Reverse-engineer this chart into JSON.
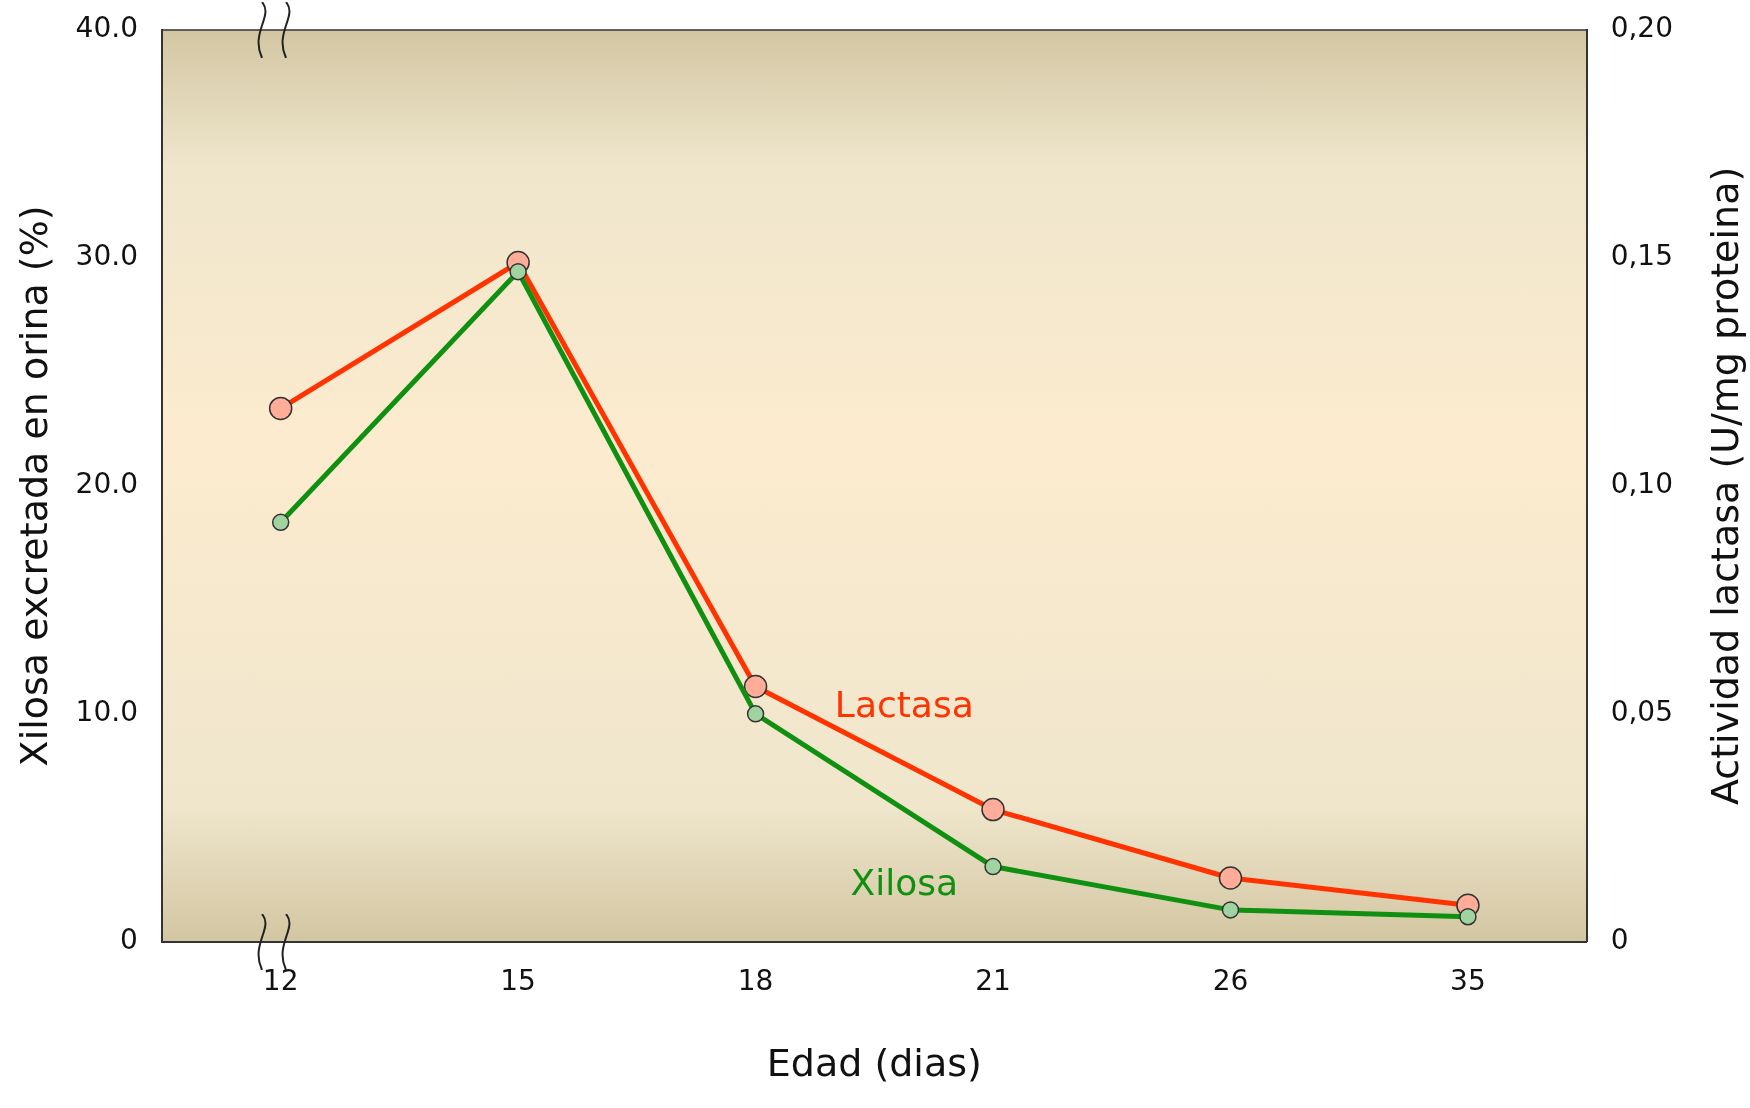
{
  "chart_data": {
    "type": "line",
    "xlabel": "Edad (dias)",
    "ylabel": "Xilosa excretada en orina (%)",
    "y2label": "Actividad lactasa (U/mg proteina)",
    "categories": [
      "12",
      "15",
      "18",
      "21",
      "26",
      "35"
    ],
    "series": [
      {
        "name": "Lactasa",
        "color": "#ff3300",
        "axis": "y2",
        "values": [
          0.117,
          0.149,
          0.056,
          0.029,
          0.014,
          0.008
        ]
      },
      {
        "name": "Xilosa",
        "color": "#109010",
        "values": [
          18.4,
          29.4,
          10.0,
          3.3,
          1.4,
          1.1
        ]
      }
    ],
    "ylim": [
      0,
      40
    ],
    "yticks": [
      0,
      {
        "value": 10,
        "label": "10.0"
      },
      {
        "value": 20,
        "label": "20.0"
      },
      {
        "value": 30,
        "label": "30.0"
      },
      {
        "value": 40,
        "label": "40.0"
      }
    ],
    "y2lim": [
      0,
      0.2
    ],
    "y2ticks": [
      0,
      {
        "value": 0.05,
        "label": "0,05"
      },
      {
        "value": 0.1,
        "label": "0,10"
      },
      {
        "value": 0.15,
        "label": "0,15"
      },
      {
        "value": 0.2,
        "label": "0,20"
      }
    ],
    "grid": false,
    "legend": false,
    "marker": "circle",
    "line_style": "solid"
  }
}
